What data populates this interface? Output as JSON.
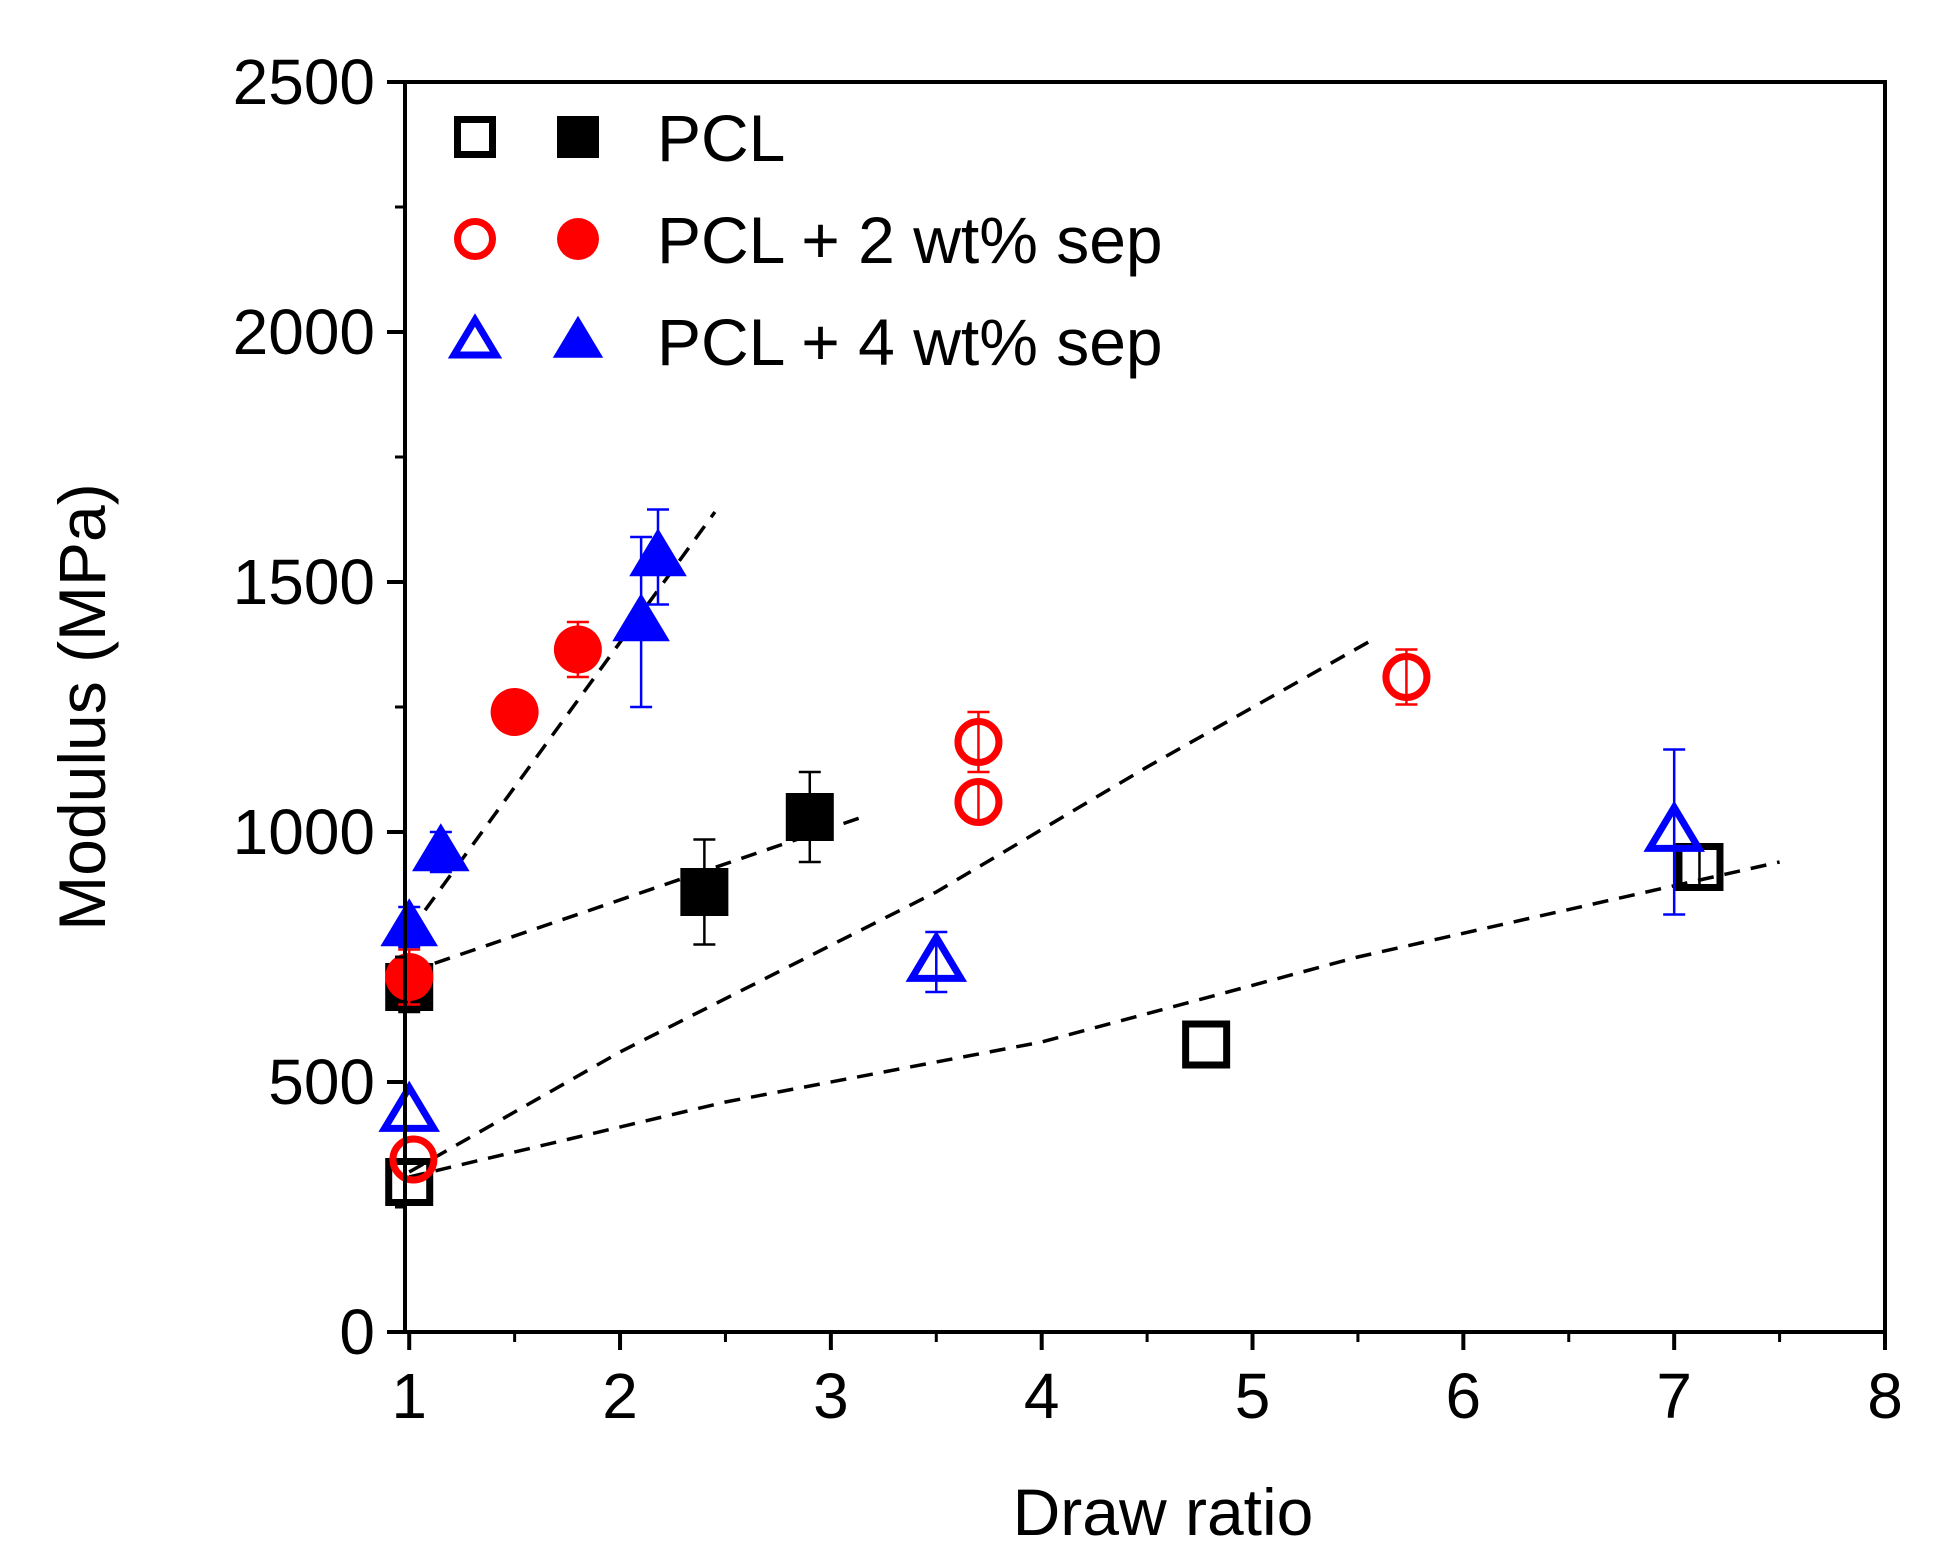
{
  "chart_data": {
    "type": "scatter",
    "xlabel": "Draw ratio",
    "ylabel": "Modulus (MPa)",
    "xlim": [
      0.98,
      8
    ],
    "ylim": [
      0,
      2500
    ],
    "x_ticks": [
      1,
      2,
      3,
      4,
      5,
      6,
      7,
      8
    ],
    "y_ticks": [
      0,
      500,
      1000,
      1500,
      2000,
      2500
    ],
    "x_tick_labels": [
      "1",
      "2",
      "3",
      "4",
      "5",
      "6",
      "7",
      "8"
    ],
    "y_tick_labels": [
      "0",
      "500",
      "1000",
      "1500",
      "2000",
      "2500"
    ],
    "grid": false,
    "legend_position": "top-left",
    "legend": [
      {
        "label": "PCL",
        "color": "#000000",
        "shape": "square"
      },
      {
        "label": "PCL + 2 wt% sep",
        "color": "#ff0000",
        "shape": "circle"
      },
      {
        "label": "PCL + 4 wt% sep",
        "color": "#0000ff",
        "shape": "triangle"
      }
    ],
    "series": [
      {
        "name": "PCL (open)",
        "color": "#000000",
        "shape": "square",
        "filled": false,
        "points": [
          {
            "x": 1.0,
            "y": 300
          },
          {
            "x": 4.78,
            "y": 575
          },
          {
            "x": 7.12,
            "y": 930,
            "err": 40
          }
        ]
      },
      {
        "name": "PCL (filled)",
        "color": "#000000",
        "shape": "square",
        "filled": true,
        "points": [
          {
            "x": 1.0,
            "y": 690,
            "err": 50
          },
          {
            "x": 2.4,
            "y": 880,
            "err": 105
          },
          {
            "x": 2.9,
            "y": 1030,
            "err": 90
          }
        ]
      },
      {
        "name": "PCL + 2 wt% sep (open)",
        "color": "#ff0000",
        "shape": "circle",
        "filled": false,
        "points": [
          {
            "x": 1.02,
            "y": 345
          },
          {
            "x": 3.7,
            "y": 1060,
            "err": 40
          },
          {
            "x": 3.7,
            "y": 1180,
            "err": 60
          },
          {
            "x": 5.73,
            "y": 1310,
            "err": 55
          }
        ]
      },
      {
        "name": "PCL + 2 wt% sep (filled)",
        "color": "#ff0000",
        "shape": "circle",
        "filled": true,
        "points": [
          {
            "x": 1.0,
            "y": 710,
            "err": 55
          },
          {
            "x": 1.5,
            "y": 1240
          },
          {
            "x": 1.8,
            "y": 1365,
            "err": 55
          }
        ]
      },
      {
        "name": "PCL + 4 wt% sep (open)",
        "color": "#0000ff",
        "shape": "triangle",
        "filled": false,
        "points": [
          {
            "x": 1.0,
            "y": 440
          },
          {
            "x": 3.5,
            "y": 740,
            "err": 60
          },
          {
            "x": 7.0,
            "y": 1000,
            "err": 165
          }
        ]
      },
      {
        "name": "PCL + 4 wt% sep (filled)",
        "color": "#0000ff",
        "shape": "triangle",
        "filled": true,
        "points": [
          {
            "x": 1.0,
            "y": 810,
            "err": 40
          },
          {
            "x": 1.15,
            "y": 960,
            "err": 40
          },
          {
            "x": 2.1,
            "y": 1420,
            "err": 170
          },
          {
            "x": 2.18,
            "y": 1550,
            "err": 95
          }
        ]
      }
    ],
    "trend_lines": [
      {
        "name": "4wt-filled-trend",
        "points": [
          [
            1.0,
            800
          ],
          [
            2.45,
            1640
          ]
        ]
      },
      {
        "name": "pcl-filled-trend",
        "points": [
          [
            1.0,
            720
          ],
          [
            3.15,
            1030
          ]
        ]
      },
      {
        "name": "2wt-open-trend",
        "points": [
          [
            1.0,
            320
          ],
          [
            2.0,
            560
          ],
          [
            3.5,
            880
          ],
          [
            4.5,
            1130
          ],
          [
            5.55,
            1380
          ]
        ]
      },
      {
        "name": "pcl-open-trend",
        "points": [
          [
            1.0,
            310
          ],
          [
            2.5,
            460
          ],
          [
            4.0,
            580
          ],
          [
            5.5,
            750
          ],
          [
            7.5,
            940
          ]
        ]
      }
    ]
  }
}
